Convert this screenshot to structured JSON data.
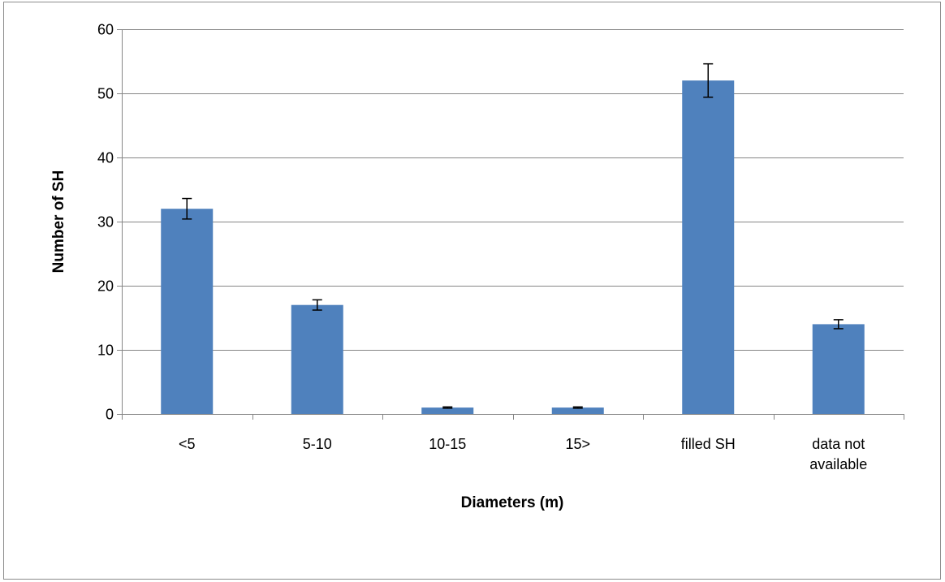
{
  "chart_data": {
    "type": "bar",
    "title": "",
    "xlabel": "Diameters (m)",
    "ylabel": "Number of SH",
    "categories": [
      [
        "<5"
      ],
      [
        "5-10"
      ],
      [
        "10-15"
      ],
      [
        "15>"
      ],
      [
        "filled SH"
      ],
      [
        "data not",
        "available"
      ]
    ],
    "values": [
      32,
      17,
      1,
      1,
      52,
      14
    ],
    "errors": [
      1.6,
      0.8,
      0.1,
      0.1,
      2.6,
      0.7
    ],
    "ylim": [
      0,
      60
    ],
    "yticks": [
      0,
      10,
      20,
      30,
      40,
      50,
      60
    ],
    "grid": true,
    "legend": "none",
    "colors": {
      "bar": "#4f81bd",
      "grid": "#868686",
      "axis": "#868686",
      "error_bar": "#000000"
    }
  }
}
